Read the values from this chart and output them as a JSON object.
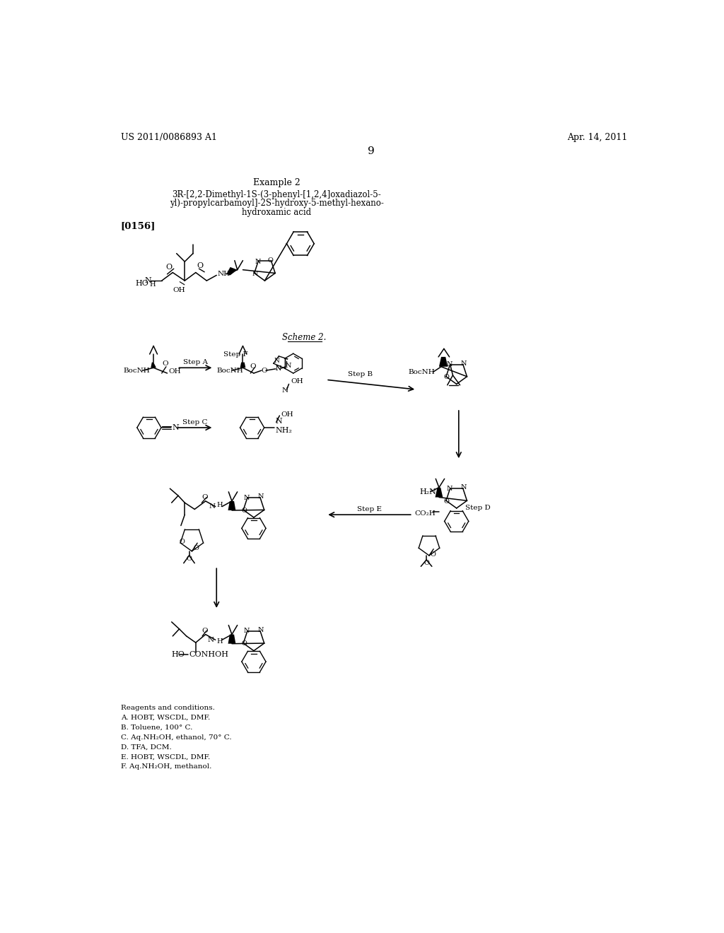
{
  "page_number": "9",
  "header_left": "US 2011/0086893 A1",
  "header_right": "Apr. 14, 2011",
  "example_title": "Example 2",
  "compound_name_line1": "3R-[2,2-Dimethyl-1S-(3-phenyl-[1,2,4]oxadiazol-5-",
  "compound_name_line2": "yl)-propylcarbamoyl]-2S-hydroxy-5-methyl-hexano-",
  "compound_name_line3": "hydroxamic acid",
  "paragraph_ref": "[0156]",
  "scheme_label": "Scheme 2.",
  "reagents_title": "Reagents and conditions.",
  "reagents": [
    "A. HOBT, WSCDL, DMF.",
    "B. Toluene, 100° C.",
    "C. Aq.NH₂OH, ethanol, 70° C.",
    "D. TFA, DCM.",
    "E. HOBT, WSCDL, DMF.",
    "F. Aq.NH₂OH, methanol."
  ],
  "background_color": "#ffffff",
  "text_color": "#000000"
}
